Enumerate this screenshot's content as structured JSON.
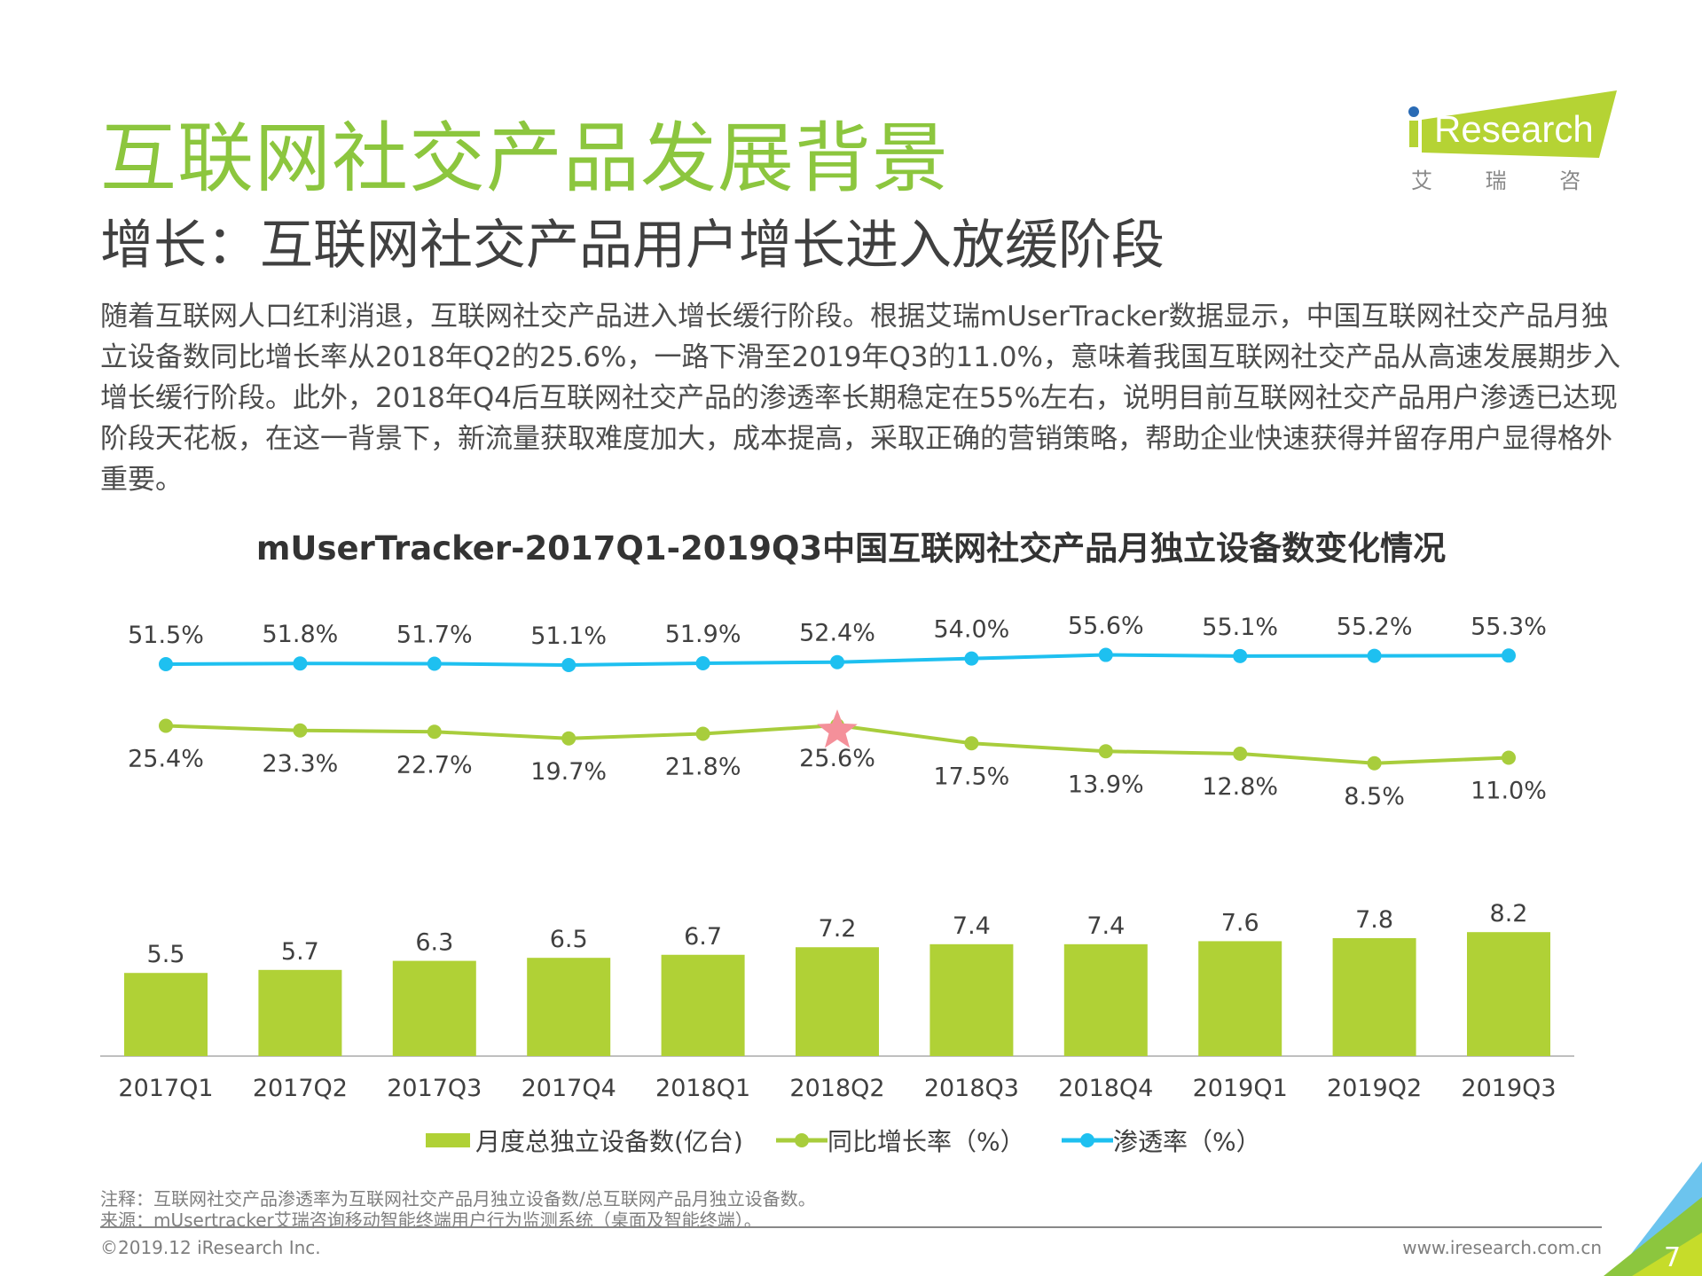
{
  "header": {
    "title": "互联网社交产品发展背景",
    "subtitle": "增长：互联网社交产品用户增长进入放缓阶段",
    "logo_text": "iResearch",
    "logo_cn": "艾 瑞 咨 询"
  },
  "paragraph": "随着互联网人口红利消退，互联网社交产品进入增长缓行阶段。根据艾瑞mUserTracker数据显示，中国互联网社交产品月独立设备数同比增长率从2018年Q2的25.6%，一路下滑至2019年Q3的11.0%，意味着我国互联网社交产品从高速发展期步入增长缓行阶段。此外，2018年Q4后互联网社交产品的渗透率长期稳定在55%左右，说明目前互联网社交产品用户渗透已达现阶段天花板，在这一背景下，新流量获取难度加大，成本提高，采取正确的营销策略，帮助企业快速获得并留存用户显得格外重要。",
  "chart_data": {
    "type": "bar+line",
    "title": "mUserTracker-2017Q1-2019Q3中国互联网社交产品月独立设备数变化情况",
    "categories": [
      "2017Q1",
      "2017Q2",
      "2017Q3",
      "2017Q4",
      "2018Q1",
      "2018Q2",
      "2018Q3",
      "2018Q4",
      "2019Q1",
      "2019Q2",
      "2019Q3"
    ],
    "series": [
      {
        "name": "月度总独立设备数(亿台)",
        "type": "bar",
        "color": "#b0d136",
        "values": [
          5.5,
          5.7,
          6.3,
          6.5,
          6.7,
          7.2,
          7.4,
          7.4,
          7.6,
          7.8,
          8.2
        ],
        "labels": [
          "5.5",
          "5.7",
          "6.3",
          "6.5",
          "6.7",
          "7.2",
          "7.4",
          "7.4",
          "7.6",
          "7.8",
          "8.2"
        ]
      },
      {
        "name": "同比增长率（%）",
        "type": "line",
        "color": "#a8cd3c",
        "values": [
          25.4,
          23.3,
          22.7,
          19.7,
          21.8,
          25.6,
          17.5,
          13.9,
          12.8,
          8.5,
          11.0
        ],
        "labels": [
          "25.4%",
          "23.3%",
          "22.7%",
          "19.7%",
          "21.8%",
          "25.6%",
          "17.5%",
          "13.9%",
          "12.8%",
          "8.5%",
          "11.0%"
        ],
        "highlight": {
          "category": "2018Q2",
          "marker": "star",
          "color": "#f4909a"
        }
      },
      {
        "name": "渗透率（%）",
        "type": "line",
        "color": "#1ec0f0",
        "values": [
          51.5,
          51.8,
          51.7,
          51.1,
          51.9,
          52.4,
          54.0,
          55.6,
          55.1,
          55.2,
          55.3
        ],
        "labels": [
          "51.5%",
          "51.8%",
          "51.7%",
          "51.1%",
          "51.9%",
          "52.4%",
          "54.0%",
          "55.6%",
          "55.1%",
          "55.2%",
          "55.3%"
        ]
      }
    ],
    "legend": "bottom",
    "grid": false
  },
  "notes": {
    "note": "注释：互联网社交产品渗透率为互联网社交产品月独立设备数/总互联网产品月独立设备数。",
    "source": "来源：mUsertracker艾瑞咨询移动智能终端用户行为监测系统（桌面及智能终端）。"
  },
  "footer": {
    "copyright": "©2019.12 iResearch Inc.",
    "url": "www.iresearch.com.cn",
    "page": "7"
  }
}
